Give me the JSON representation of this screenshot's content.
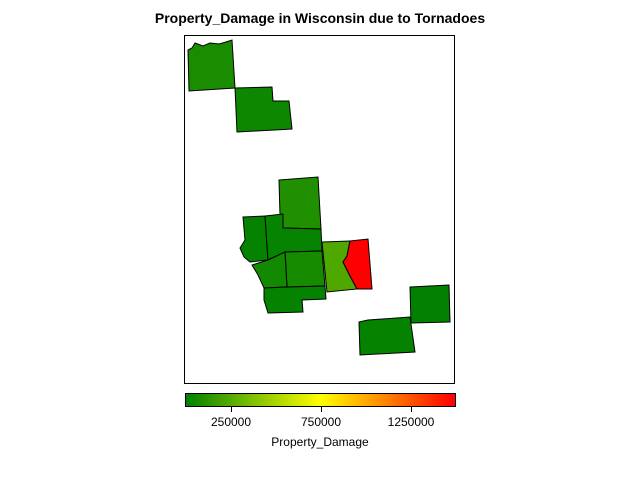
{
  "title": "Property_Damage in Wisconsin due to Tornadoes",
  "legend": {
    "label": "Property_Damage",
    "ticks": [
      "250000",
      "750000",
      "1250000"
    ],
    "colors": {
      "low": "#008000",
      "mid": "#ffff00",
      "high": "#ff0000"
    }
  },
  "map_data": {
    "type": "choropleth",
    "state": "Wisconsin",
    "variable": "Property_Damage",
    "regions": [
      {
        "id": "r1",
        "value": 120000,
        "color": "#1a8c00"
      },
      {
        "id": "r2",
        "value": 60000,
        "color": "#0e8700"
      },
      {
        "id": "r3",
        "value": 140000,
        "color": "#209000"
      },
      {
        "id": "r4",
        "value": 30000,
        "color": "#058200"
      },
      {
        "id": "r5",
        "value": 40000,
        "color": "#068300"
      },
      {
        "id": "r6",
        "value": 330000,
        "color": "#4fa800"
      },
      {
        "id": "r7",
        "value": 1400000,
        "color": "#ff0000"
      },
      {
        "id": "r8",
        "value": 100000,
        "color": "#178b00"
      },
      {
        "id": "r9",
        "value": 90000,
        "color": "#128900"
      },
      {
        "id": "r10",
        "value": 30000,
        "color": "#048200"
      },
      {
        "id": "r11",
        "value": 30000,
        "color": "#048200"
      },
      {
        "id": "r12",
        "value": 20000,
        "color": "#028100"
      }
    ]
  }
}
